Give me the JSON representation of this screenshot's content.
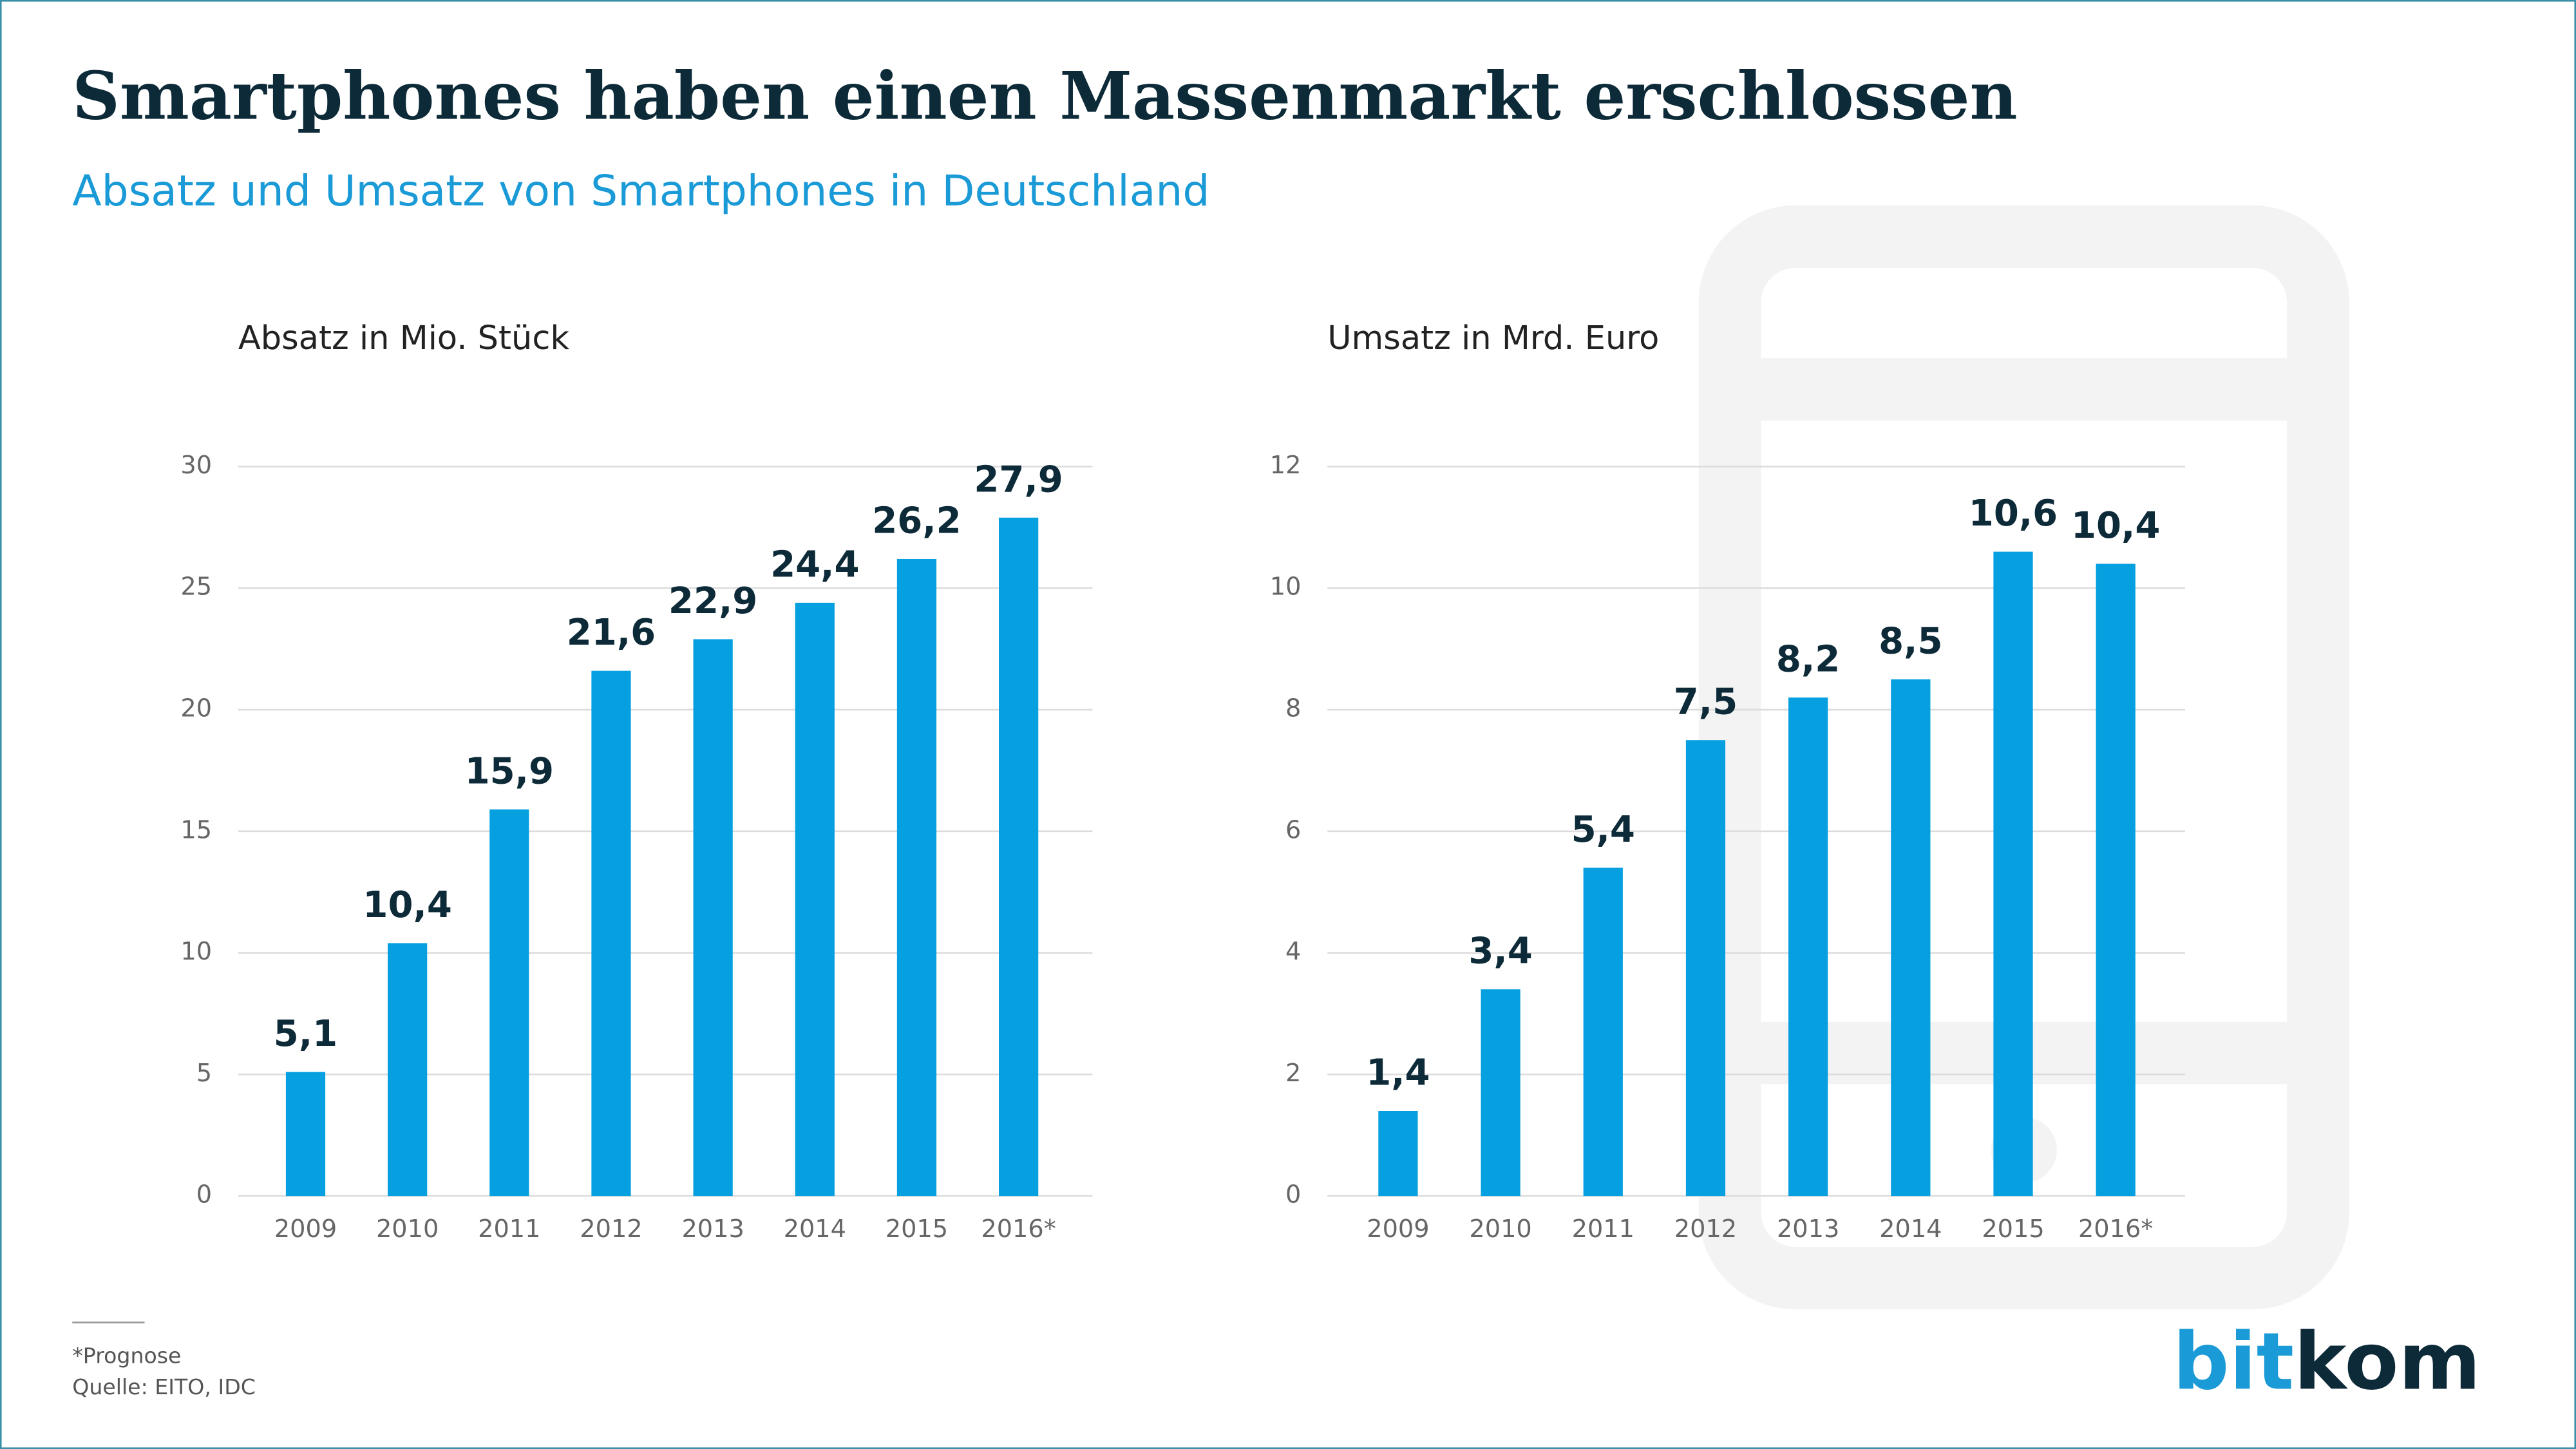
{
  "title": "Smartphones haben einen Massenmarkt erschlossen",
  "subtitle": "Absatz und Umsatz von Smartphones in Deutschland",
  "footnote": "*Prognose",
  "source": "Quelle: EITO, IDC",
  "logo": {
    "first": "bit",
    "second": "kom"
  },
  "chart_data": [
    {
      "type": "bar",
      "title": "Absatz in Mio. Stück",
      "categories": [
        "2009",
        "2010",
        "2011",
        "2012",
        "2013",
        "2014",
        "2015",
        "2016*"
      ],
      "values": [
        5.1,
        10.4,
        15.9,
        21.6,
        22.9,
        24.4,
        26.2,
        27.9
      ],
      "value_labels": [
        "5,1",
        "10,4",
        "15,9",
        "21,6",
        "22,9",
        "24,4",
        "26,2",
        "27,9"
      ],
      "color": "#069fe0",
      "ylim": [
        0,
        30
      ],
      "yticks": [
        0,
        5,
        10,
        15,
        20,
        25,
        30
      ],
      "grid": true
    },
    {
      "type": "bar",
      "title": "Umsatz in Mrd. Euro",
      "categories": [
        "2009",
        "2010",
        "2011",
        "2012",
        "2013",
        "2014",
        "2015",
        "2016*"
      ],
      "values": [
        1.4,
        3.4,
        5.4,
        7.5,
        8.2,
        8.5,
        10.6,
        10.4
      ],
      "value_labels": [
        "1,4",
        "3,4",
        "5,4",
        "7,5",
        "8,2",
        "8,5",
        "10,6",
        "10,4"
      ],
      "color": "#069fe0",
      "ylim": [
        0,
        12
      ],
      "yticks": [
        0,
        2,
        4,
        6,
        8,
        10,
        12
      ],
      "grid": true
    }
  ]
}
